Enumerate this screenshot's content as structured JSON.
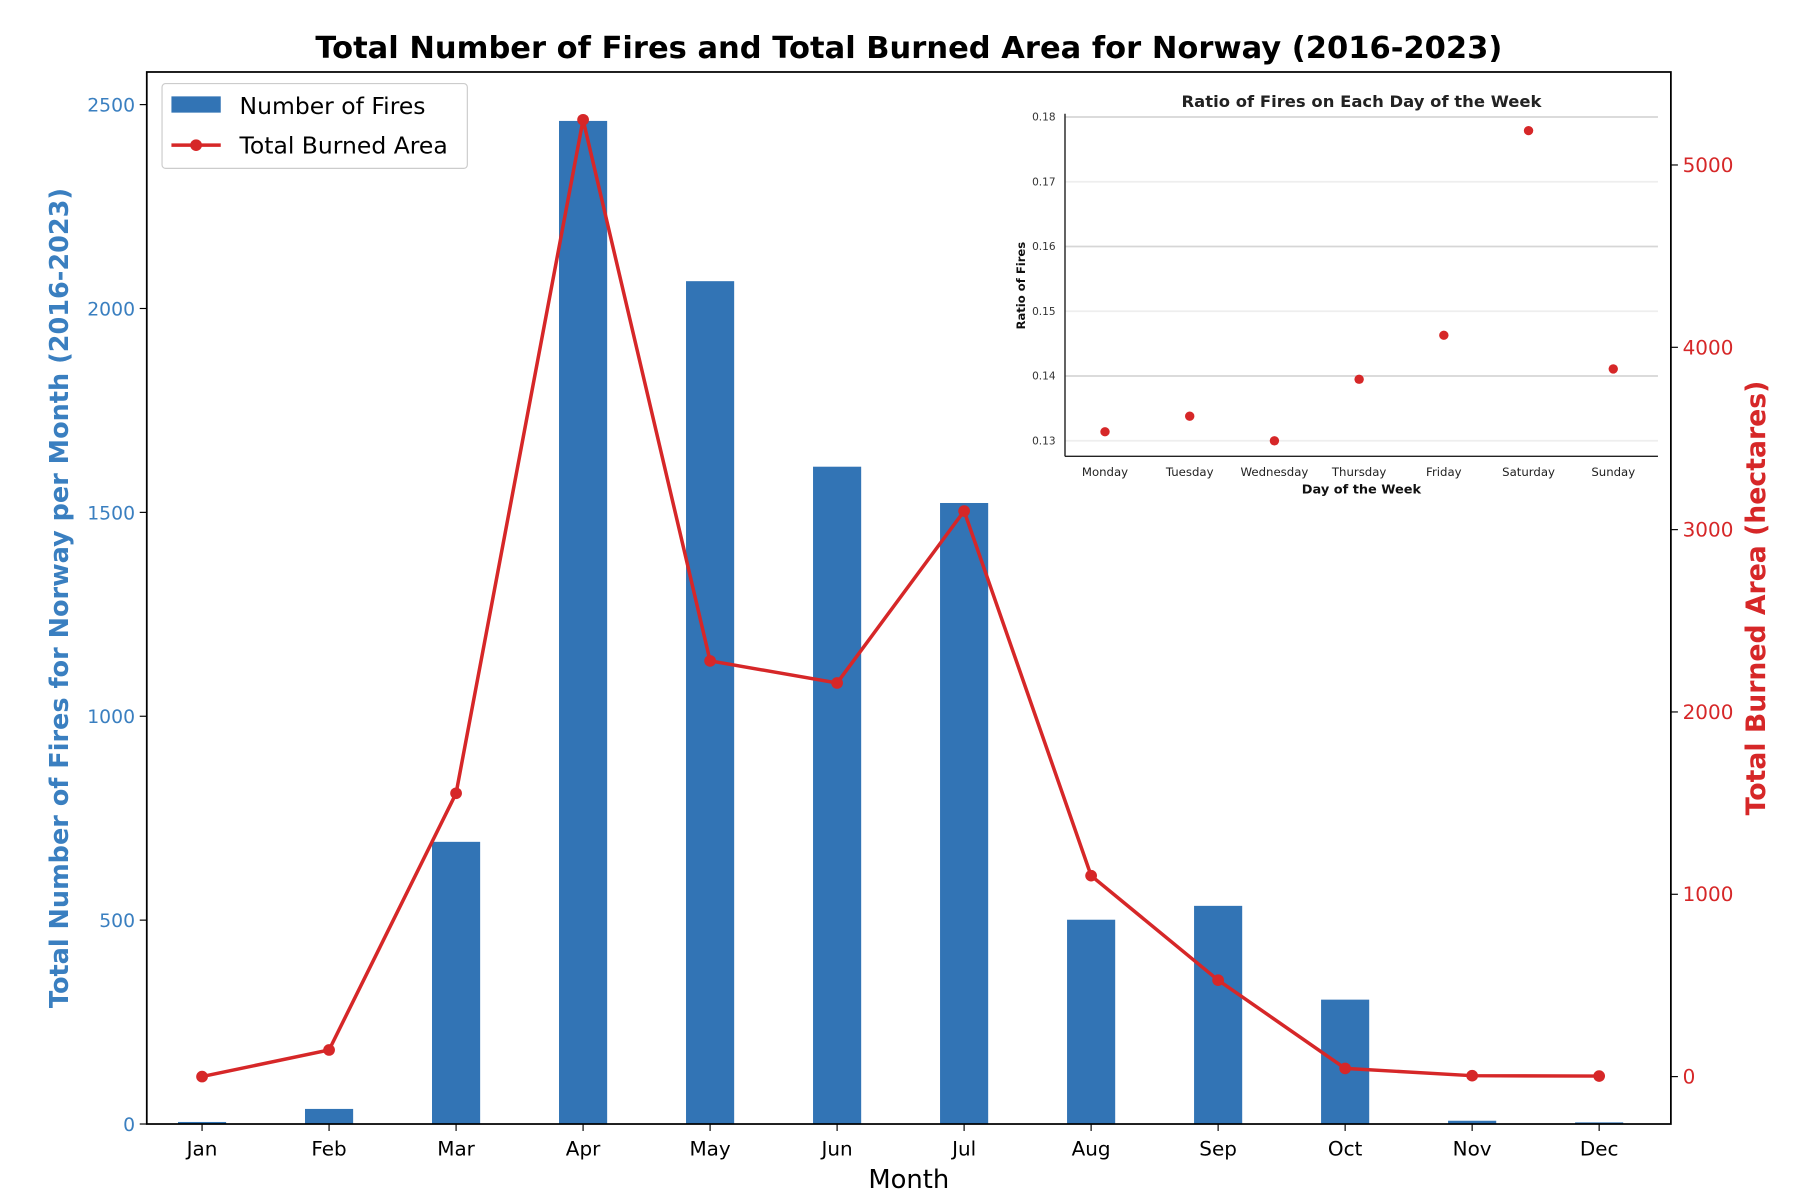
{
  "chart_data": [
    {
      "type": "bar+line",
      "title": "Total Number of Fires and Total Burned Area for Norway (2016-2023)",
      "xlabel": "Month",
      "ylabel": "Total Number of Fires for Norway per Month (2016-2023)",
      "ylabel_right": "Total Burned Area (hectares)",
      "categories": [
        "Jan",
        "Feb",
        "Mar",
        "Apr",
        "May",
        "Jun",
        "Jul",
        "Aug",
        "Sep",
        "Oct",
        "Nov",
        "Dec"
      ],
      "ylim": [
        0,
        2580
      ],
      "ylim_right": [
        -260,
        5510
      ],
      "yticks": [
        0,
        500,
        1000,
        1500,
        2000,
        2500
      ],
      "yticks_right": [
        0,
        1000,
        2000,
        3000,
        4000,
        5000
      ],
      "legend_position": "top-left",
      "series": [
        {
          "name": "Number of Fires",
          "kind": "bar",
          "axis": "left",
          "color": "#3274b5",
          "values": [
            5,
            37,
            692,
            2460,
            2067,
            1612,
            1523,
            501,
            535,
            305,
            8,
            4
          ]
        },
        {
          "name": "Total Burned Area",
          "kind": "line",
          "axis": "right",
          "color": "#d62728",
          "values": [
            0,
            146,
            1554,
            5248,
            2280,
            2159,
            3102,
            1102,
            529,
            45,
            5,
            3
          ]
        }
      ]
    },
    {
      "type": "scatter",
      "title": "Ratio of Fires on Each Day of the Week",
      "xlabel": "Day of the Week",
      "ylabel": "Ratio of Fires",
      "categories": [
        "Monday",
        "Tuesday",
        "Wednesday",
        "Thursday",
        "Friday",
        "Saturday",
        "Sunday"
      ],
      "values": [
        0.1314,
        0.1338,
        0.13,
        0.1395,
        0.1463,
        0.1779,
        0.1411
      ],
      "ylim": [
        0.1276,
        0.1805
      ],
      "yticks": [
        "0.13",
        "0.14",
        "0.15",
        "0.16",
        "0.17",
        "0.18"
      ],
      "grid": true,
      "color": "#d62728"
    }
  ]
}
